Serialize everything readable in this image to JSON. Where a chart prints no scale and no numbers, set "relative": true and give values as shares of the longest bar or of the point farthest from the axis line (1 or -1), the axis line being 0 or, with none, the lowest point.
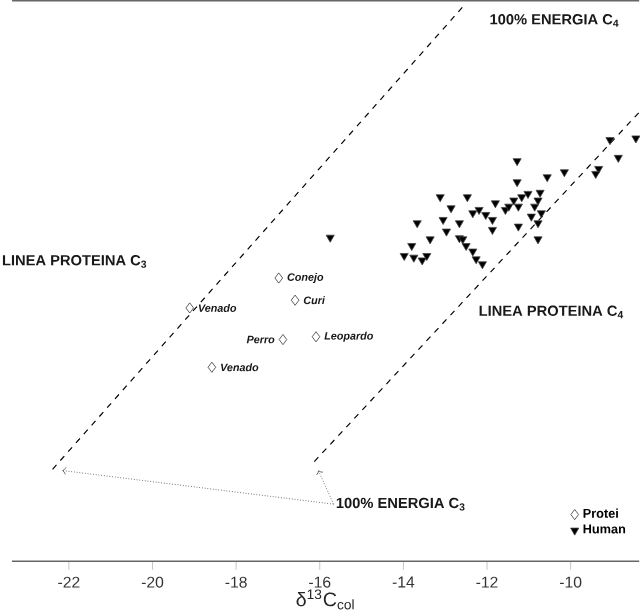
{
  "chart_data": {
    "type": "scatter",
    "relative": true,
    "xlabel": "δ$^{13}$C$_{col}$",
    "xlim": [
      -23.36,
      -8.36
    ],
    "xticks": [
      -22,
      -20,
      -18,
      -16,
      -14,
      -12,
      -10
    ],
    "tick_labels": "x",
    "legend": "bottom right",
    "series": [
      {
        "name": "Protei",
        "marker": "diamond",
        "color": "#333333",
        "x": [
          -16.98,
          -16.59,
          -19.11,
          -16.88,
          -16.09,
          -18.58
        ],
        "values": [
          0.511,
          0.471,
          0.457,
          0.4,
          0.405,
          0.35
        ]
      },
      {
        "name": "Human",
        "marker": "triangle",
        "color": "#444444",
        "x": [
          -15.75,
          -11.28,
          -11.28,
          -10.56,
          -10.15,
          -9.06,
          -8.86,
          -9.33,
          -9.4,
          -8.44,
          -13.12,
          -12.47,
          -12.86,
          -13.67,
          -13.8,
          -13.98,
          -13.75,
          -13.55,
          -13.44,
          -13.36,
          -12.97,
          -13.05,
          -12.66,
          -12.66,
          -12.5,
          -12.34,
          -12.11,
          -12.34,
          -12.19,
          -12.03,
          -11.87,
          -11.87,
          -11.8,
          -11.56,
          -11.48,
          -11.36,
          -11.25,
          -11.17,
          -11.25,
          -10.94,
          -10.86,
          -10.78,
          -10.73,
          -10.7,
          -10.78,
          -10.78,
          -11.02,
          -12.26,
          -12.58
        ],
        "values": [
          0.584,
          0.722,
          0.684,
          0.693,
          0.702,
          0.76,
          0.728,
          0.708,
          0.699,
          0.763,
          0.657,
          0.657,
          0.637,
          0.61,
          0.569,
          0.551,
          0.548,
          0.543,
          0.551,
          0.581,
          0.595,
          0.616,
          0.61,
          0.583,
          0.569,
          0.559,
          0.536,
          0.628,
          0.634,
          0.625,
          0.616,
          0.598,
          0.646,
          0.634,
          0.64,
          0.651,
          0.64,
          0.657,
          0.604,
          0.622,
          0.64,
          0.651,
          0.665,
          0.628,
          0.61,
          0.581,
          0.663,
          0.545,
          0.581
        ]
      },
      {
        "type": "line",
        "line_style": "dashed",
        "color": "#000000",
        "x": [
          -22.39,
          -12.58
        ],
        "values": [
          0.166,
          1
        ]
      },
      {
        "type": "line",
        "line_style": "dashed",
        "color": "#000000",
        "x": [
          -16.13,
          -8.36
        ],
        "values": [
          0.18,
          0.81
        ]
      }
    ],
    "annotations": [
      {
        "text": "Conejo",
        "x": -16.98,
        "y": 0.511
      },
      {
        "text": "Curi",
        "x": -16.59,
        "y": 0.471
      },
      {
        "text": "Venado",
        "x": -19.11,
        "y": 0.457
      },
      {
        "text": "Perro",
        "x": -16.88,
        "y": 0.4
      },
      {
        "text": "Leopardo",
        "x": -16.09,
        "y": 0.405
      },
      {
        "text": "Venado",
        "x": -18.58,
        "y": 0.35
      },
      "LINEA PROTEINA C$_{3}$",
      "100% ENERGIA C$_{4}$",
      "LINEA PROTEINA C$_{4}$",
      "100% ENERGIA C$_{3}$"
    ]
  }
}
